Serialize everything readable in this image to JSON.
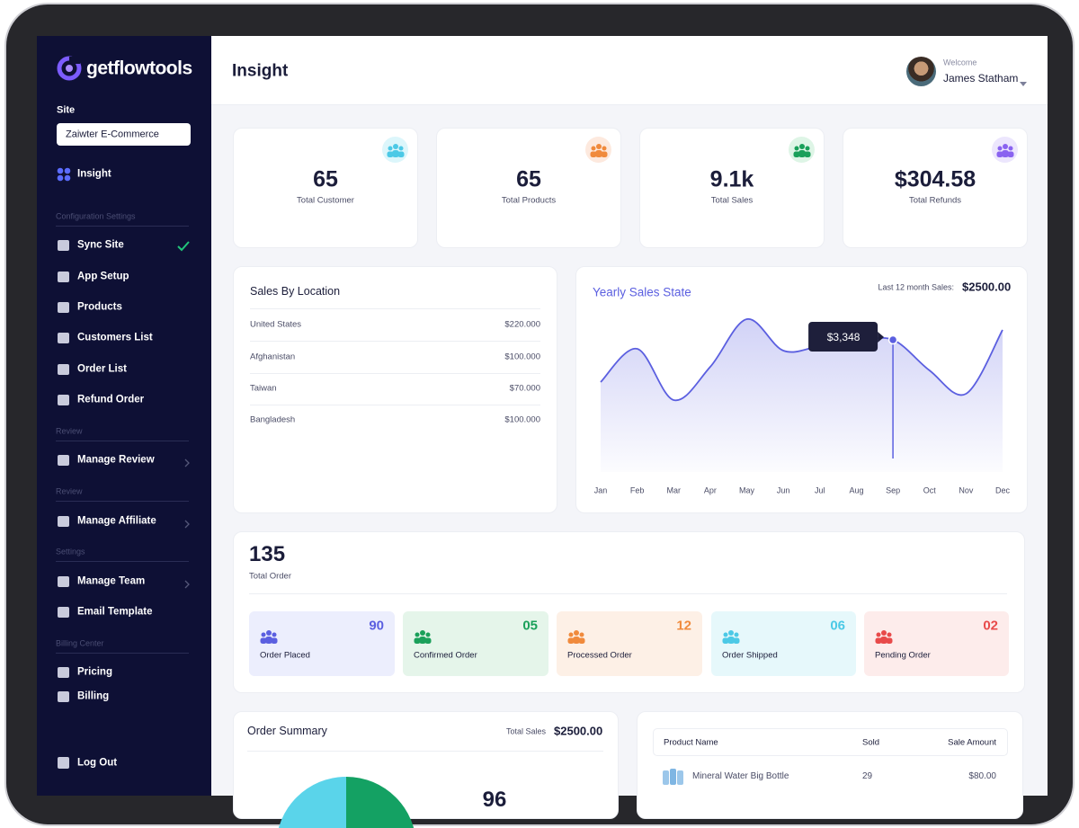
{
  "brand": "getflowtools",
  "sidebar": {
    "site_label": "Site",
    "site_value": "Zaiwter E-Commerce",
    "top_item": "Insight",
    "sections": [
      {
        "title": "Configuration Settings",
        "items": [
          "Sync Site",
          "App Setup",
          "Products",
          "Customers List",
          "Order List",
          "Refund Order"
        ]
      },
      {
        "title": "Review",
        "items": [
          "Manage Review"
        ]
      },
      {
        "title": "Review",
        "items": [
          "Manage Affiliate"
        ]
      },
      {
        "title": "Settings",
        "items": [
          "Manage Team",
          "Email Template"
        ]
      },
      {
        "title": "Billing Center",
        "items": [
          "Pricing",
          "Billing"
        ]
      }
    ],
    "logout": "Log Out"
  },
  "header": {
    "title": "Insight",
    "welcome": "Welcome",
    "user_name": "James Statham"
  },
  "stats": [
    {
      "value": "65",
      "label": "Total Customer"
    },
    {
      "value": "65",
      "label": "Total Products"
    },
    {
      "value": "9.1k",
      "label": "Total Sales"
    },
    {
      "value": "$304.58",
      "label": "Total Refunds"
    }
  ],
  "sales_by_location": {
    "title": "Sales By Location",
    "rows": [
      [
        "United States",
        "$220.000"
      ],
      [
        "Afghanistan",
        "$100.000"
      ],
      [
        "Taiwan",
        "$70.000"
      ],
      [
        "Bangladesh",
        "$100.000"
      ]
    ]
  },
  "chart_data": {
    "type": "area",
    "title": "Yearly Sales State",
    "subtitle": "Last 12 month Sales:",
    "total": "$2500.00",
    "categories": [
      "Jan",
      "Feb",
      "Mar",
      "Apr",
      "May",
      "Jun",
      "Jul",
      "Aug",
      "Sep",
      "Oct",
      "Nov",
      "Dec"
    ],
    "values": [
      2278,
      3121,
      1822,
      2665,
      3872,
      3075,
      3189,
      3303,
      3348,
      2574,
      1982,
      3599
    ],
    "value_labels": [
      null,
      null,
      null,
      null,
      null,
      null,
      null,
      null,
      "$3,348",
      null,
      null,
      null
    ],
    "color": "#5b5fe0",
    "ylim": [
      0,
      4100
    ]
  },
  "orders": {
    "total": "135",
    "total_label": "Total Order",
    "statuses": [
      {
        "count": "90",
        "label": "Order Placed"
      },
      {
        "count": "05",
        "label": "Confirmed Order"
      },
      {
        "count": "12",
        "label": "Processed Order"
      },
      {
        "count": "06",
        "label": "Order Shipped"
      },
      {
        "count": "02",
        "label": "Pending Order"
      }
    ]
  },
  "order_summary": {
    "title": "Order Summary",
    "total_label": "Total Sales",
    "total": "$2500.00",
    "center_value": "96"
  },
  "products": {
    "columns": [
      "Product Name",
      "Sold",
      "Sale Amount"
    ],
    "rows": [
      [
        "Mineral Water Big Bottle",
        "29",
        "$80.00"
      ]
    ]
  }
}
